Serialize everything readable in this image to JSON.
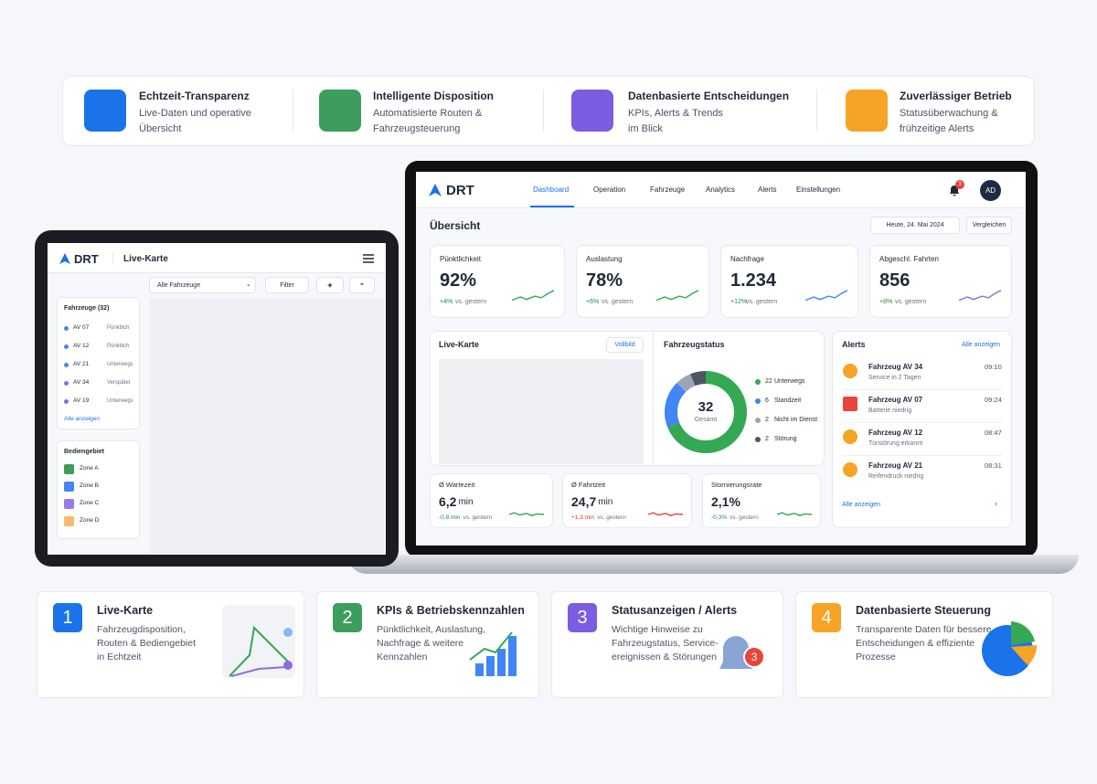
{
  "features": [
    {
      "title": "Echtzeit-Transparenz",
      "lines": [
        "Live-Daten und operative",
        "Übersicht"
      ]
    },
    {
      "title": "Intelligente Disposition",
      "lines": [
        "Automatisierte Routen &",
        "Fahrzeugsteuerung"
      ]
    },
    {
      "title": "Datenbasierte Entscheidungen",
      "lines": [
        "KPIs, Alerts & Trends",
        "im Blick"
      ]
    },
    {
      "title": "Zuverlässiger Betrieb",
      "lines": [
        "Statusüberwachung &",
        "frühzeitige Alerts"
      ]
    }
  ],
  "laptop": {
    "brand": "DRT",
    "nav": [
      "Dashboard",
      "Operation",
      "Fahrzeuge",
      "Analytics",
      "Alerts",
      "Einstellungen"
    ],
    "badge": "3",
    "avatar": "AD",
    "heading": "Übersicht",
    "date": "Heute, 24. Mai 2024",
    "compare": "Vergleichen",
    "kpis": [
      {
        "label": "Pünktlichkeit",
        "value": "92%",
        "delta": "+4%",
        "suffix": "vs. gestern"
      },
      {
        "label": "Auslastung",
        "value": "78%",
        "delta": "+6%",
        "suffix": "vs. gestern"
      },
      {
        "label": "Nachfrage",
        "value": "1.234",
        "delta": "+12%",
        "suffix": "vs. gestern"
      },
      {
        "label": "Abgeschl. Fahrten",
        "value": "856",
        "delta": "+8%",
        "suffix": "vs. gestern"
      }
    ],
    "map": {
      "title": "Live-Karte",
      "button": "Vollbild"
    },
    "status": {
      "title": "Fahrzeugstatus",
      "total": "32",
      "total_label": "Gesamt",
      "items": [
        {
          "count": 22,
          "label": "Unterwegs",
          "color": "#34a853"
        },
        {
          "count": 6,
          "label": "Standzeit",
          "color": "#4285f4"
        },
        {
          "count": 2,
          "label": "Nicht im Dienst",
          "color": "#9aa6b8"
        },
        {
          "count": 2,
          "label": "Störung",
          "color": "#4b5563"
        }
      ]
    },
    "alerts": {
      "title": "Alerts",
      "link": "Alle anzeigen",
      "footer": "Alle anzeigen",
      "items": [
        {
          "title": "Fahrzeug AV 34",
          "sub": "Service in 2 Tagen",
          "time": "09:10"
        },
        {
          "title": "Fahrzeug AV 07",
          "sub": "Batterie niedrig",
          "time": "09:24"
        },
        {
          "title": "Fahrzeug AV 12",
          "sub": "Türstörung erkannt",
          "time": "08:47"
        },
        {
          "title": "Fahrzeug AV 21",
          "sub": "Reifendruck niedrig",
          "time": "08:31"
        }
      ]
    },
    "metrics": [
      {
        "label": "Ø Wartezeit",
        "value": "6,2",
        "unit": "min",
        "delta": "-0,8 min",
        "suffix": "vs. gestern"
      },
      {
        "label": "Ø Fahrtzeit",
        "value": "24,7",
        "unit": "min",
        "delta": "+1,3 min",
        "suffix": "vs. gestern"
      },
      {
        "label": "Stornierungsrate",
        "value": "2,1%",
        "delta": "-0,3%",
        "suffix": "vs. gestern"
      }
    ]
  },
  "tablet": {
    "brand": "DRT",
    "title": "Live-Karte",
    "select": "Alle Fahrzeuge",
    "filter": "Filter",
    "vehicles_title": "Fahrzeuge (32)",
    "vehicles": [
      {
        "id": "AV 07",
        "status": "Pünktlich"
      },
      {
        "id": "AV 12",
        "status": "Pünktlich"
      },
      {
        "id": "AV 21",
        "status": "Unterwegs"
      },
      {
        "id": "AV 34",
        "status": "Verspätet"
      },
      {
        "id": "AV 19",
        "status": "Unterwegs"
      }
    ],
    "link": "Alle anzeigen",
    "zones_title": "Bediengebiet",
    "zones": [
      "Zone A",
      "Zone B",
      "Zone C",
      "Zone D"
    ]
  },
  "cards": [
    {
      "number": "1",
      "title": "Live-Karte",
      "lines": [
        "Fahrzeugdisposition,",
        "Routen & Bediengebiet",
        "in Echtzeit"
      ]
    },
    {
      "number": "2",
      "title": "KPIs & Betriebskennzahlen",
      "lines": [
        "Pünktlichkeit, Auslastung,",
        "Nachfrage & weitere",
        "Kennzahlen"
      ]
    },
    {
      "number": "3",
      "title": "Statusanzeigen / Alerts",
      "lines": [
        "Wichtige Hinweise zu",
        "Fahrzeugstatus, Service-",
        "ereignissen & Störungen"
      ],
      "badge": "3"
    },
    {
      "number": "4",
      "title": "Datenbasierte Steuerung",
      "lines": [
        "Transparente Daten für bessere",
        "Entscheidungen & effiziente",
        "Prozesse"
      ]
    }
  ]
}
